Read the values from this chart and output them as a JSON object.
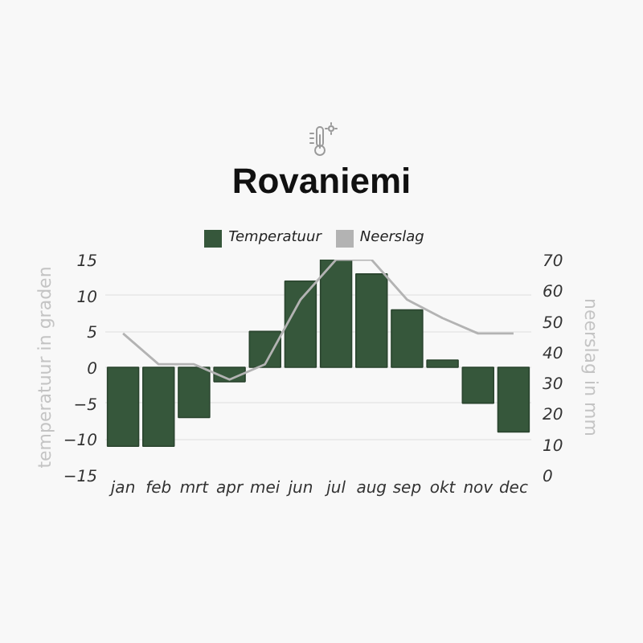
{
  "chart_data": {
    "type": "bar",
    "title": "Rovaniemi",
    "ylabel": "temperatuur in graden",
    "y2label": "neerslag in mm",
    "categories": [
      "jan",
      "feb",
      "mrt",
      "apr",
      "mei",
      "jun",
      "jul",
      "aug",
      "sep",
      "okt",
      "nov",
      "dec"
    ],
    "series": [
      {
        "name": "Temperatuur",
        "color": "#36573b",
        "values": [
          -11,
          -11,
          -7,
          -2,
          5,
          12,
          15,
          13,
          8,
          1,
          -5,
          -9
        ]
      },
      {
        "name": "Neerslag",
        "type": "line",
        "axis": "y2",
        "color": "#b3b3b3",
        "values": [
          46,
          36,
          36,
          31,
          36,
          57,
          70,
          70,
          57,
          51,
          46,
          46
        ]
      }
    ],
    "ylim": [
      -15,
      15
    ],
    "yticks": [
      -15,
      -10,
      -5,
      0,
      5,
      10,
      15
    ],
    "y2lim": [
      0,
      70
    ],
    "y2ticks": [
      0,
      10,
      20,
      30,
      40,
      50,
      60,
      70
    ],
    "grid": "y",
    "legend": "top"
  }
}
